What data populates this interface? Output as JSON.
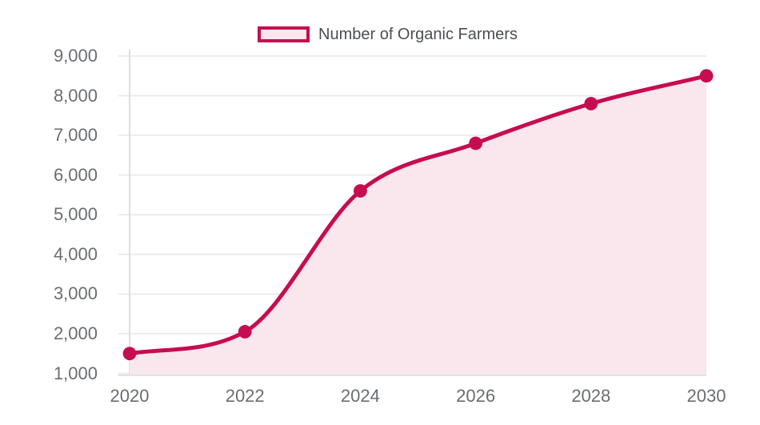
{
  "legend": {
    "label": "Number of Organic Farmers"
  },
  "chart_data": {
    "type": "area",
    "title": "",
    "xlabel": "",
    "ylabel": "",
    "x": [
      2020,
      2022,
      2024,
      2026,
      2028,
      2030
    ],
    "x_tick_labels": [
      "2020",
      "2022",
      "2024",
      "2026",
      "2028",
      "2030"
    ],
    "series": [
      {
        "name": "Number of Organic Farmers",
        "values": [
          1500,
          2050,
          5600,
          6800,
          7800,
          8500
        ]
      }
    ],
    "ylim": [
      1000,
      9000
    ],
    "y_tick_step": 1000,
    "y_tick_labels": [
      "1,000",
      "2,000",
      "3,000",
      "4,000",
      "5,000",
      "6,000",
      "7,000",
      "8,000",
      "9,000"
    ],
    "grid": "horizontal-only",
    "legend_position": "top",
    "line_smoothing": "monotone-cubic",
    "colors": {
      "line": "#C60D4F",
      "point": "#C60D4F",
      "area_fill": "#F9E7ED",
      "grid_line": "#EBEBEB",
      "axis_border": "#DEDEE1",
      "tick_text": "#6A6D72",
      "legend_text": "#4B4E54",
      "legend_swatch_fill": "#F9E7ED",
      "background": "#FFFFFF"
    }
  }
}
